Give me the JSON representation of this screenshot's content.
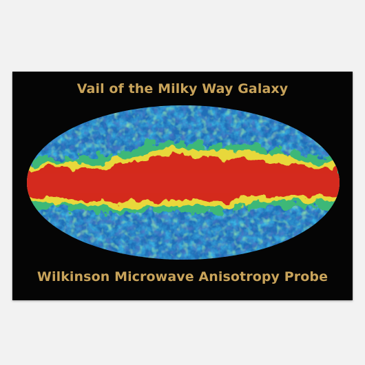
{
  "poster": {
    "title": "Vail of the Milky Way Galaxy",
    "subtitle": "Wilkinson Microwave Anisotropy Probe",
    "colors": {
      "background": "#050505",
      "page": "#f2f2f2",
      "text": "#c8a35a",
      "galactic_band": "#d42a1e",
      "cmb_blue": "#1a3fa0",
      "cmb_cyan": "#1aa3c8",
      "cmb_green": "#3cb878",
      "cmb_yellow": "#e8d83a"
    },
    "image": {
      "subject": "all-sky-microwave-map",
      "projection": "mollweide-ellipse"
    }
  }
}
